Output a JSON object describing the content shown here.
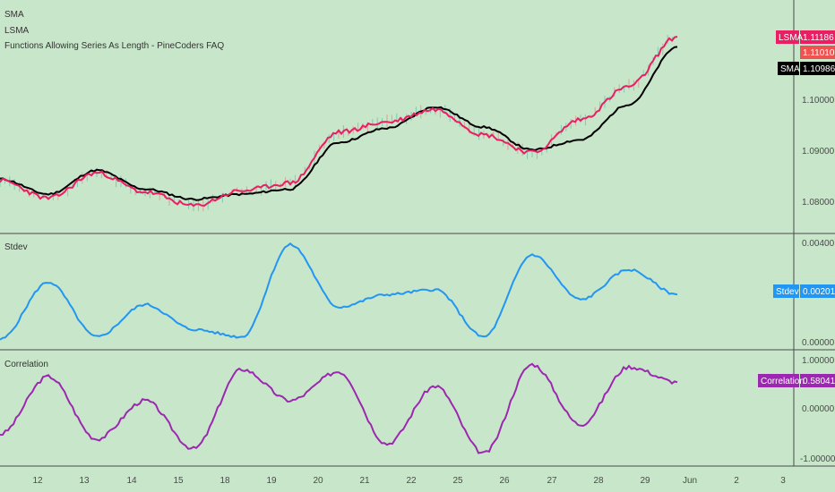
{
  "colors": {
    "background": "#c8e6c9",
    "sma": "#000000",
    "lsma": "#e91e63",
    "price_badge": "#ef5350",
    "stdev": "#2196f3",
    "correlation": "#9c27b0",
    "divider": "#4a4a4a"
  },
  "main_pane": {
    "titles": [
      "SMA",
      "LSMA",
      "Functions Allowing Series As Length - PineCoders FAQ"
    ],
    "y_ticks": [
      "1.10000",
      "1.09000",
      "1.08000"
    ],
    "badges": [
      {
        "name": "LSMA",
        "value": "1.11186"
      },
      {
        "name": "",
        "value": "1.11010"
      },
      {
        "name": "SMA",
        "value": "1.10986"
      }
    ]
  },
  "stdev_pane": {
    "title": "Stdev",
    "y_ticks": [
      "0.00400",
      "0.00000"
    ],
    "badge": {
      "name": "Stdev",
      "value": "0.00201"
    }
  },
  "corr_pane": {
    "title": "Correlation",
    "y_ticks": [
      "1.00000",
      "0.00000",
      "-1.00000"
    ],
    "badge": {
      "name": "Correlation",
      "value": "0.58041"
    }
  },
  "x_axis": {
    "ticks": [
      "12",
      "13",
      "14",
      "15",
      "18",
      "19",
      "20",
      "21",
      "22",
      "25",
      "26",
      "27",
      "28",
      "29",
      "Jun",
      "2",
      "3"
    ]
  },
  "chart_data": [
    {
      "type": "line",
      "ylim": [
        1.075,
        1.1155
      ],
      "x": [
        0,
        1,
        2,
        3,
        4,
        5,
        6,
        7,
        8,
        9,
        10,
        11,
        12,
        13,
        14
      ],
      "series": [
        {
          "name": "SMA",
          "values": [
            1.0838,
            1.0808,
            1.0855,
            1.0818,
            1.0798,
            1.0808,
            1.0818,
            1.091,
            1.0938,
            1.098,
            1.094,
            1.0895,
            1.0915,
            1.0985,
            1.1098
          ]
        },
        {
          "name": "LSMA",
          "values": [
            1.0835,
            1.08,
            1.085,
            1.0812,
            1.0785,
            1.0815,
            1.083,
            1.093,
            1.095,
            1.0975,
            1.0925,
            1.089,
            1.0955,
            1.102,
            1.1118
          ]
        }
      ]
    },
    {
      "type": "line",
      "ylim": [
        0.0,
        0.0042
      ],
      "x": [
        0,
        1,
        2,
        3,
        4,
        5,
        6,
        7,
        8,
        9,
        10,
        11,
        12,
        13,
        14
      ],
      "series": [
        {
          "name": "Stdev",
          "values": [
            0.0002,
            0.0025,
            0.0003,
            0.0016,
            0.0006,
            0.0003,
            0.004,
            0.0015,
            0.002,
            0.0022,
            0.0003,
            0.0036,
            0.0018,
            0.003,
            0.002
          ]
        }
      ]
    },
    {
      "type": "line",
      "ylim": [
        -1.05,
        1.05
      ],
      "x": [
        0,
        1,
        2,
        3,
        4,
        5,
        6,
        7,
        8,
        9,
        10,
        11,
        12,
        13,
        14
      ],
      "series": [
        {
          "name": "Correlation",
          "values": [
            -0.5,
            0.7,
            -0.6,
            0.2,
            -0.8,
            0.85,
            0.2,
            0.8,
            -0.7,
            0.5,
            -0.9,
            0.95,
            -0.3,
            0.9,
            0.58
          ]
        }
      ]
    }
  ]
}
